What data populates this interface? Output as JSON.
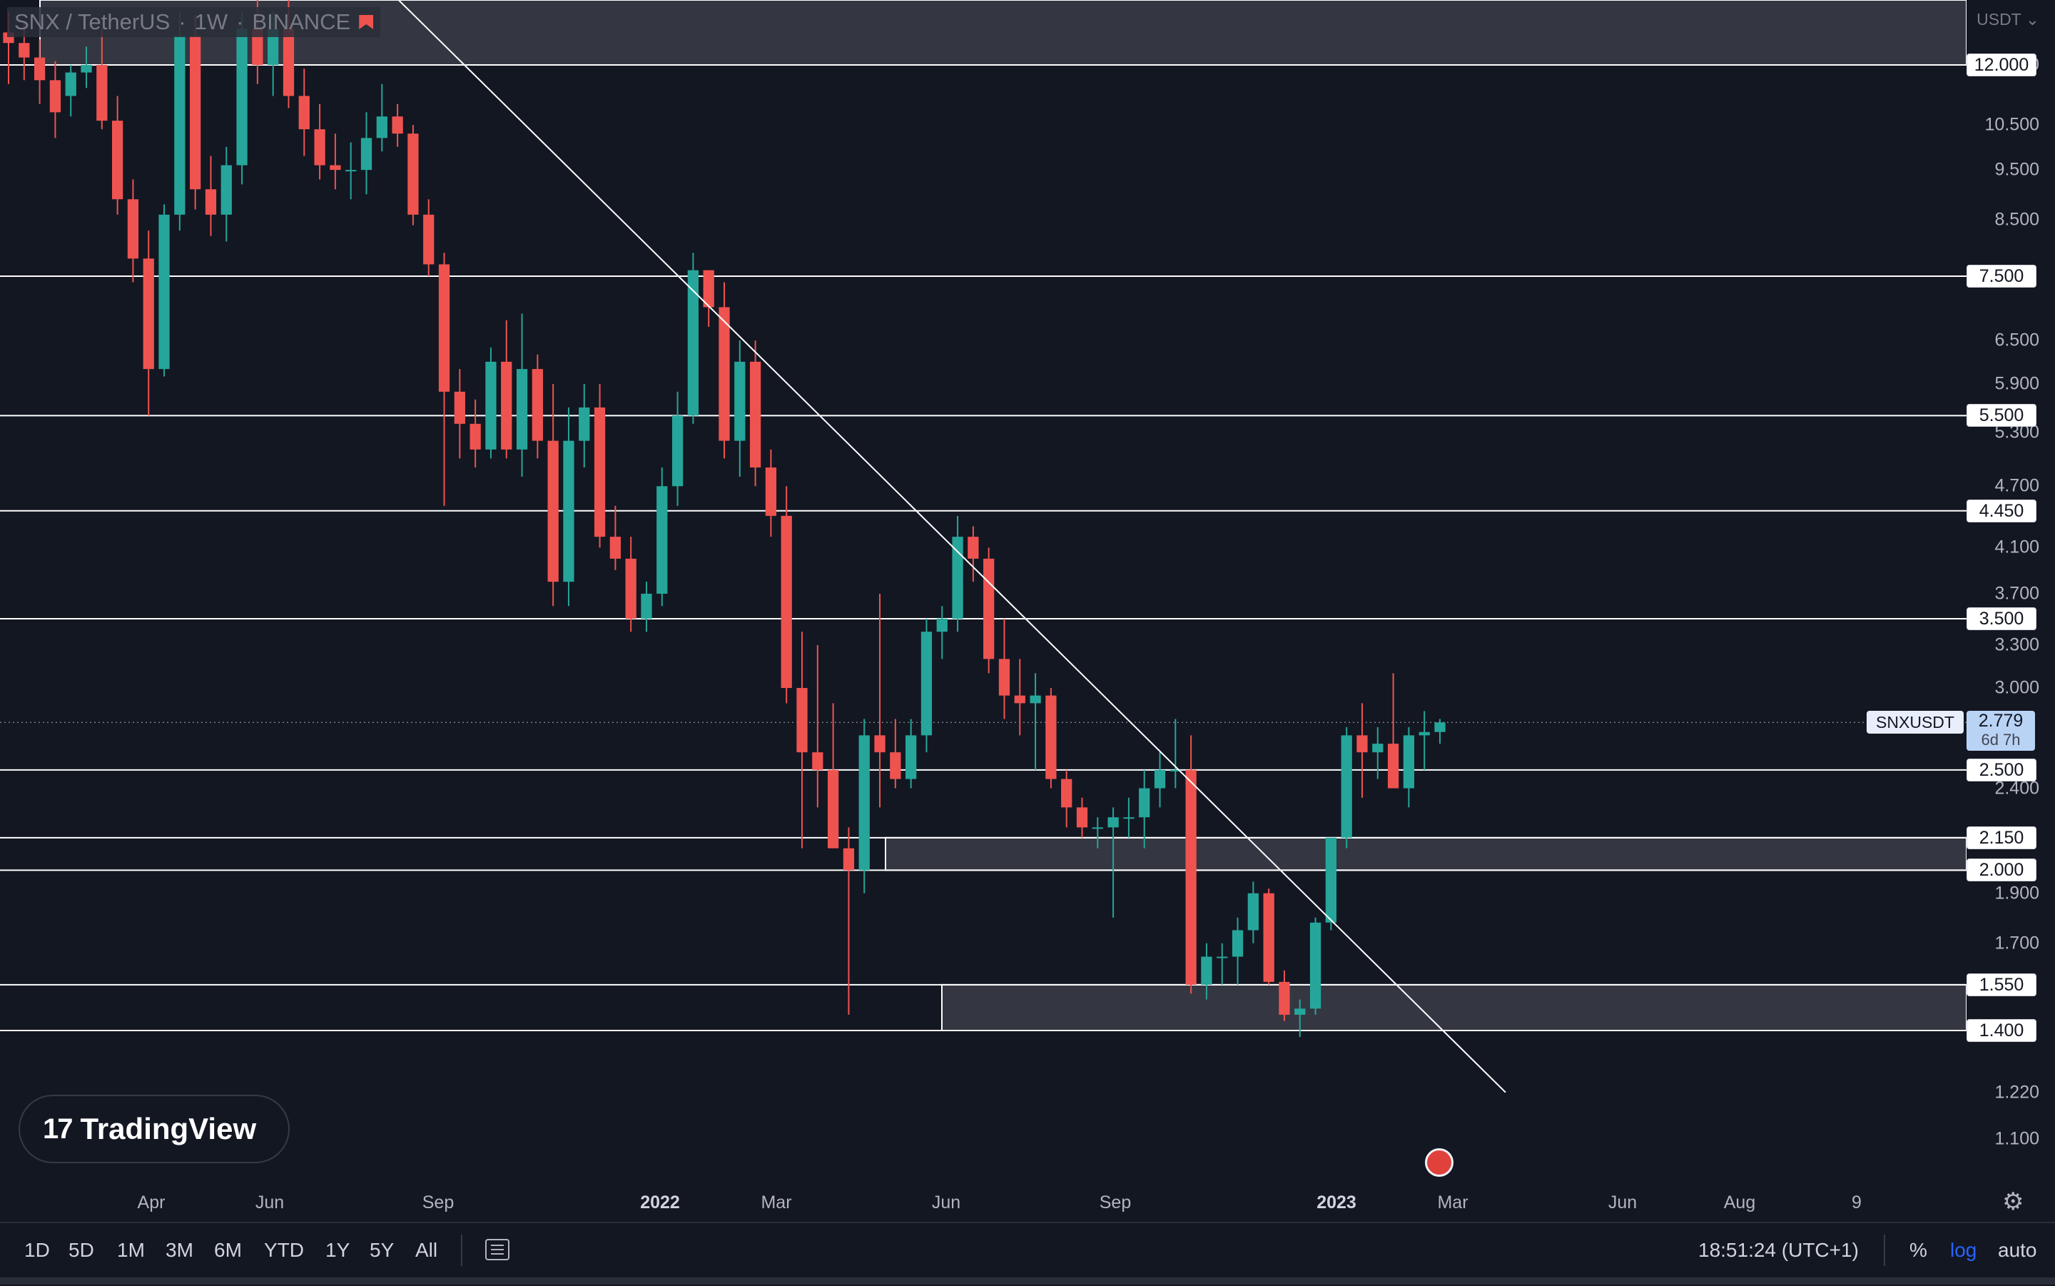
{
  "legend": {
    "symbol": "SNX / TetherUS",
    "interval": "1W",
    "exchange": "BINANCE",
    "sep1": "·",
    "sep2": "·"
  },
  "logo": {
    "mark": "17",
    "text": "TradingView"
  },
  "price_axis": {
    "currency": "USDT",
    "labels": [
      "12.000",
      "10.500",
      "9.500",
      "8.500",
      "6.500",
      "5.900",
      "5.300",
      "4.700",
      "4.100",
      "3.700",
      "3.300",
      "3.000",
      "2.400",
      "1.900",
      "1.700",
      "1.220",
      "1.100"
    ]
  },
  "time_axis": {
    "labels": [
      "Apr",
      "Jun",
      "Sep",
      "2022",
      "Mar",
      "Jun",
      "Sep",
      "2023",
      "Mar",
      "Jun",
      "Aug",
      "9"
    ]
  },
  "current_price": {
    "symbol": "SNXUSDT",
    "price": "2.779",
    "countdown": "6d 7h"
  },
  "range_buttons": [
    "1D",
    "5D",
    "1M",
    "3M",
    "6M",
    "YTD",
    "1Y",
    "5Y",
    "All"
  ],
  "status": {
    "clock": "18:51:24 (UTC+1)",
    "percent": "%",
    "log": "log",
    "auto": "auto"
  },
  "icons": {
    "goto_date": "calendar-goto-icon",
    "settings": "gear-icon",
    "event": "us-flag-event-icon",
    "flag": "flag-icon"
  },
  "colors": {
    "up": "#26a69a",
    "down": "#ef5350",
    "background": "#131722",
    "level_line": "#ffffff",
    "accent": "#2962ff"
  },
  "chart_data": {
    "type": "candlestick",
    "symbol": "SNX / TetherUS",
    "interval": "1W",
    "exchange": "BINANCE",
    "scale": "log",
    "y_axis_unit": "USDT",
    "ylim": [
      1.0,
      14.0
    ],
    "x_range": [
      "2021-02",
      "2023-09"
    ],
    "horizontal_levels": [
      {
        "value": 12.0,
        "label": "12.000"
      },
      {
        "value": 7.5,
        "label": "7.500"
      },
      {
        "value": 5.5,
        "label": "5.500"
      },
      {
        "value": 4.45,
        "label": "4.450"
      },
      {
        "value": 3.5,
        "label": "3.500"
      },
      {
        "value": 2.5,
        "label": "2.500"
      },
      {
        "value": 2.15,
        "label": "2.150"
      },
      {
        "value": 2.0,
        "label": "2.000"
      },
      {
        "value": 1.55,
        "label": "1.550"
      },
      {
        "value": 1.4,
        "label": "1.400"
      }
    ],
    "zones": [
      {
        "from": 12.0,
        "to": 14.0,
        "start": "2021-02"
      },
      {
        "from": 2.0,
        "to": 2.15,
        "start": "2022-05"
      },
      {
        "from": 1.4,
        "to": 1.55,
        "start": "2022-06"
      }
    ],
    "trendline": {
      "start": {
        "date": "2021-08",
        "price": 14.5
      },
      "end": {
        "date": "2023-04",
        "price": 1.22
      }
    },
    "current_price": 2.779,
    "candles": [
      {
        "o": 12.9,
        "h": 13.5,
        "l": 11.5,
        "c": 12.6
      },
      {
        "o": 12.6,
        "h": 13.2,
        "l": 11.6,
        "c": 12.2
      },
      {
        "o": 12.2,
        "h": 12.7,
        "l": 11.0,
        "c": 11.6
      },
      {
        "o": 11.6,
        "h": 12.1,
        "l": 10.2,
        "c": 10.8
      },
      {
        "o": 11.2,
        "h": 12.0,
        "l": 10.7,
        "c": 11.8
      },
      {
        "o": 11.8,
        "h": 12.5,
        "l": 11.4,
        "c": 12.0
      },
      {
        "o": 12.0,
        "h": 13.0,
        "l": 10.4,
        "c": 10.6
      },
      {
        "o": 10.6,
        "h": 11.2,
        "l": 8.6,
        "c": 8.9
      },
      {
        "o": 8.9,
        "h": 9.3,
        "l": 7.4,
        "c": 7.8
      },
      {
        "o": 7.8,
        "h": 8.3,
        "l": 5.5,
        "c": 6.1
      },
      {
        "o": 6.1,
        "h": 8.8,
        "l": 6.0,
        "c": 8.6
      },
      {
        "o": 8.6,
        "h": 13.5,
        "l": 8.3,
        "c": 12.8
      },
      {
        "o": 12.8,
        "h": 13.4,
        "l": 8.7,
        "c": 9.1
      },
      {
        "o": 9.1,
        "h": 9.8,
        "l": 8.2,
        "c": 8.6
      },
      {
        "o": 8.6,
        "h": 10.0,
        "l": 8.1,
        "c": 9.6
      },
      {
        "o": 9.6,
        "h": 13.5,
        "l": 9.2,
        "c": 13.0
      },
      {
        "o": 13.0,
        "h": 14.0,
        "l": 11.5,
        "c": 12.0
      },
      {
        "o": 12.0,
        "h": 13.5,
        "l": 11.2,
        "c": 13.0
      },
      {
        "o": 13.0,
        "h": 14.0,
        "l": 10.9,
        "c": 11.2
      },
      {
        "o": 11.2,
        "h": 11.9,
        "l": 9.8,
        "c": 10.4
      },
      {
        "o": 10.4,
        "h": 11.0,
        "l": 9.3,
        "c": 9.6
      },
      {
        "o": 9.6,
        "h": 10.3,
        "l": 9.1,
        "c": 9.5
      },
      {
        "o": 9.5,
        "h": 10.1,
        "l": 8.9,
        "c": 9.5
      },
      {
        "o": 9.5,
        "h": 10.8,
        "l": 9.0,
        "c": 10.2
      },
      {
        "o": 10.2,
        "h": 11.5,
        "l": 9.9,
        "c": 10.7
      },
      {
        "o": 10.7,
        "h": 11.0,
        "l": 10.0,
        "c": 10.3
      },
      {
        "o": 10.3,
        "h": 10.5,
        "l": 8.4,
        "c": 8.6
      },
      {
        "o": 8.6,
        "h": 8.9,
        "l": 7.5,
        "c": 7.7
      },
      {
        "o": 7.7,
        "h": 7.9,
        "l": 4.5,
        "c": 5.8
      },
      {
        "o": 5.8,
        "h": 6.1,
        "l": 5.0,
        "c": 5.4
      },
      {
        "o": 5.4,
        "h": 5.7,
        "l": 4.9,
        "c": 5.1
      },
      {
        "o": 5.1,
        "h": 6.4,
        "l": 5.0,
        "c": 6.2
      },
      {
        "o": 6.2,
        "h": 6.8,
        "l": 5.0,
        "c": 5.1
      },
      {
        "o": 5.1,
        "h": 6.9,
        "l": 4.8,
        "c": 6.1
      },
      {
        "o": 6.1,
        "h": 6.3,
        "l": 5.0,
        "c": 5.2
      },
      {
        "o": 5.2,
        "h": 5.9,
        "l": 3.6,
        "c": 3.8
      },
      {
        "o": 3.8,
        "h": 5.6,
        "l": 3.6,
        "c": 5.2
      },
      {
        "o": 5.2,
        "h": 5.9,
        "l": 4.9,
        "c": 5.6
      },
      {
        "o": 5.6,
        "h": 5.9,
        "l": 4.1,
        "c": 4.2
      },
      {
        "o": 4.2,
        "h": 4.5,
        "l": 3.9,
        "c": 4.0
      },
      {
        "o": 4.0,
        "h": 4.2,
        "l": 3.4,
        "c": 3.5
      },
      {
        "o": 3.5,
        "h": 3.8,
        "l": 3.4,
        "c": 3.7
      },
      {
        "o": 3.7,
        "h": 4.9,
        "l": 3.6,
        "c": 4.7
      },
      {
        "o": 4.7,
        "h": 5.8,
        "l": 4.5,
        "c": 5.5
      },
      {
        "o": 5.5,
        "h": 7.9,
        "l": 5.4,
        "c": 7.6
      },
      {
        "o": 7.6,
        "h": 7.6,
        "l": 6.7,
        "c": 7.0
      },
      {
        "o": 7.0,
        "h": 7.4,
        "l": 5.0,
        "c": 5.2
      },
      {
        "o": 5.2,
        "h": 6.5,
        "l": 4.8,
        "c": 6.2
      },
      {
        "o": 6.2,
        "h": 6.5,
        "l": 4.7,
        "c": 4.9
      },
      {
        "o": 4.9,
        "h": 5.1,
        "l": 4.2,
        "c": 4.4
      },
      {
        "o": 4.4,
        "h": 4.7,
        "l": 2.9,
        "c": 3.0
      },
      {
        "o": 3.0,
        "h": 3.4,
        "l": 2.1,
        "c": 2.6
      },
      {
        "o": 2.6,
        "h": 3.3,
        "l": 2.3,
        "c": 2.5
      },
      {
        "o": 2.5,
        "h": 2.9,
        "l": 2.1,
        "c": 2.1
      },
      {
        "o": 2.1,
        "h": 2.2,
        "l": 1.45,
        "c": 2.0
      },
      {
        "o": 2.0,
        "h": 2.8,
        "l": 1.9,
        "c": 2.7
      },
      {
        "o": 2.7,
        "h": 3.7,
        "l": 2.3,
        "c": 2.6
      },
      {
        "o": 2.6,
        "h": 2.8,
        "l": 2.4,
        "c": 2.45
      },
      {
        "o": 2.45,
        "h": 2.8,
        "l": 2.4,
        "c": 2.7
      },
      {
        "o": 2.7,
        "h": 3.5,
        "l": 2.6,
        "c": 3.4
      },
      {
        "o": 3.4,
        "h": 3.6,
        "l": 3.2,
        "c": 3.5
      },
      {
        "o": 3.5,
        "h": 4.4,
        "l": 3.4,
        "c": 4.2
      },
      {
        "o": 4.2,
        "h": 4.3,
        "l": 3.8,
        "c": 4.0
      },
      {
        "o": 4.0,
        "h": 4.1,
        "l": 3.1,
        "c": 3.2
      },
      {
        "o": 3.2,
        "h": 3.5,
        "l": 2.8,
        "c": 2.95
      },
      {
        "o": 2.95,
        "h": 3.2,
        "l": 2.7,
        "c": 2.9
      },
      {
        "o": 2.9,
        "h": 3.1,
        "l": 2.5,
        "c": 2.95
      },
      {
        "o": 2.95,
        "h": 3.0,
        "l": 2.4,
        "c": 2.45
      },
      {
        "o": 2.45,
        "h": 2.5,
        "l": 2.2,
        "c": 2.3
      },
      {
        "o": 2.3,
        "h": 2.35,
        "l": 2.15,
        "c": 2.2
      },
      {
        "o": 2.2,
        "h": 2.25,
        "l": 2.1,
        "c": 2.2
      },
      {
        "o": 2.2,
        "h": 2.3,
        "l": 1.8,
        "c": 2.25
      },
      {
        "o": 2.25,
        "h": 2.35,
        "l": 2.15,
        "c": 2.25
      },
      {
        "o": 2.25,
        "h": 2.5,
        "l": 2.1,
        "c": 2.4
      },
      {
        "o": 2.4,
        "h": 2.6,
        "l": 2.3,
        "c": 2.5
      },
      {
        "o": 2.5,
        "h": 2.8,
        "l": 2.4,
        "c": 2.5
      },
      {
        "o": 2.5,
        "h": 2.7,
        "l": 1.52,
        "c": 1.55
      },
      {
        "o": 1.55,
        "h": 1.7,
        "l": 1.5,
        "c": 1.65
      },
      {
        "o": 1.65,
        "h": 1.7,
        "l": 1.55,
        "c": 1.65
      },
      {
        "o": 1.65,
        "h": 1.8,
        "l": 1.55,
        "c": 1.75
      },
      {
        "o": 1.75,
        "h": 1.95,
        "l": 1.7,
        "c": 1.9
      },
      {
        "o": 1.9,
        "h": 1.92,
        "l": 1.55,
        "c": 1.56
      },
      {
        "o": 1.56,
        "h": 1.6,
        "l": 1.43,
        "c": 1.45
      },
      {
        "o": 1.45,
        "h": 1.5,
        "l": 1.38,
        "c": 1.47
      },
      {
        "o": 1.47,
        "h": 1.8,
        "l": 1.45,
        "c": 1.78
      },
      {
        "o": 1.78,
        "h": 2.15,
        "l": 1.75,
        "c": 2.15
      },
      {
        "o": 2.15,
        "h": 2.75,
        "l": 2.1,
        "c": 2.7
      },
      {
        "o": 2.7,
        "h": 2.9,
        "l": 2.35,
        "c": 2.6
      },
      {
        "o": 2.6,
        "h": 2.75,
        "l": 2.45,
        "c": 2.65
      },
      {
        "o": 2.65,
        "h": 3.1,
        "l": 2.4,
        "c": 2.4
      },
      {
        "o": 2.4,
        "h": 2.75,
        "l": 2.3,
        "c": 2.7
      },
      {
        "o": 2.7,
        "h": 2.85,
        "l": 2.5,
        "c": 2.72
      },
      {
        "o": 2.72,
        "h": 2.8,
        "l": 2.65,
        "c": 2.779
      }
    ]
  }
}
